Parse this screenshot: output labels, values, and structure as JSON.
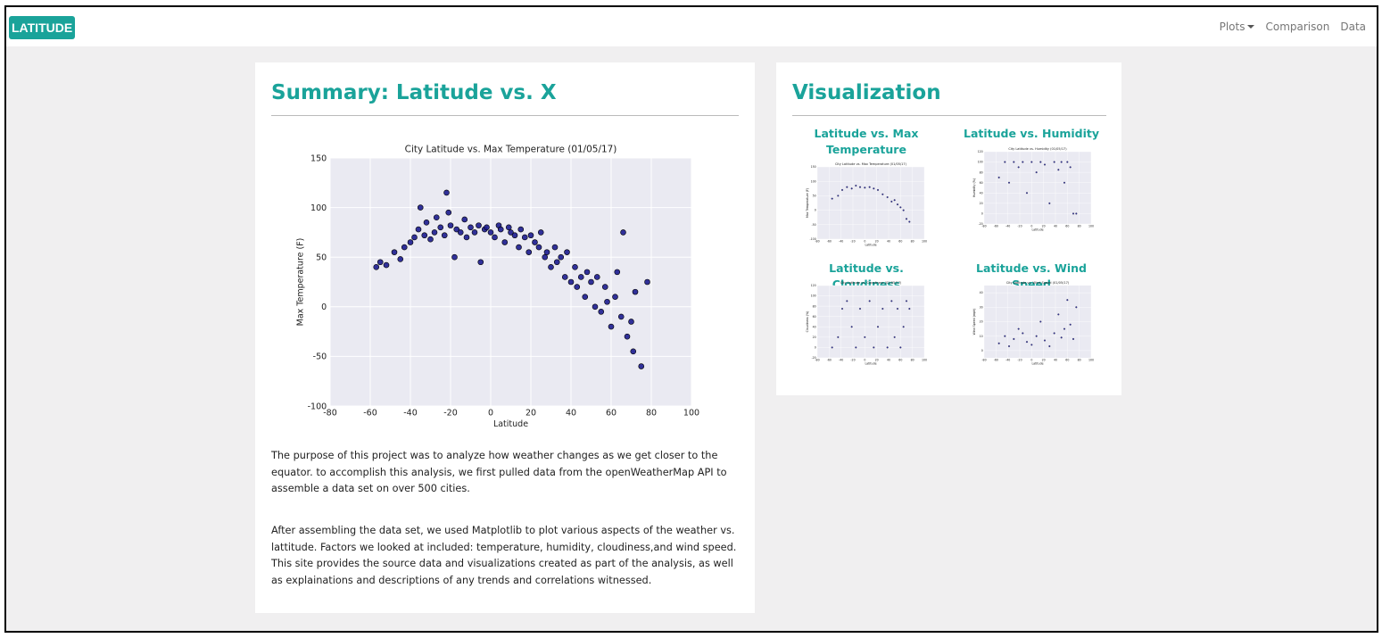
{
  "navbar": {
    "brand": "LATITUDE",
    "links": [
      "Plots",
      "Comparison",
      "Data"
    ]
  },
  "summary": {
    "title": "Summary: Latitude vs. X",
    "chart": {
      "type": "scatter",
      "title": "City Latitude vs. Max Temperature (01/05/17)",
      "xlabel": "Latitude",
      "ylabel": "Max Temperature (F)",
      "x": [
        -57,
        -55,
        -52,
        -48,
        -45,
        -43,
        -40,
        -38,
        -36,
        -35,
        -33,
        -32,
        -30,
        -28,
        -27,
        -25,
        -23,
        -22,
        -21,
        -20,
        -18,
        -17,
        -15,
        -13,
        -12,
        -10,
        -8,
        -6,
        -5,
        -3,
        -2,
        0,
        2,
        4,
        5,
        7,
        9,
        10,
        12,
        14,
        15,
        17,
        19,
        20,
        22,
        24,
        25,
        27,
        28,
        30,
        32,
        33,
        35,
        37,
        38,
        40,
        42,
        43,
        45,
        47,
        48,
        50,
        52,
        53,
        55,
        57,
        58,
        60,
        62,
        63,
        65,
        66,
        68,
        70,
        71,
        72,
        75,
        78
      ],
      "values": [
        40,
        45,
        42,
        55,
        48,
        60,
        65,
        70,
        78,
        100,
        72,
        85,
        68,
        75,
        90,
        80,
        72,
        115,
        95,
        82,
        50,
        78,
        75,
        88,
        70,
        80,
        75,
        82,
        45,
        78,
        80,
        75,
        70,
        82,
        78,
        65,
        80,
        75,
        72,
        60,
        78,
        70,
        55,
        72,
        65,
        60,
        75,
        50,
        55,
        40,
        60,
        45,
        50,
        30,
        55,
        25,
        40,
        20,
        30,
        10,
        35,
        25,
        0,
        30,
        -5,
        20,
        5,
        -20,
        10,
        35,
        -10,
        75,
        -30,
        -15,
        -45,
        15,
        -60,
        25
      ],
      "xlim": [
        -80,
        100
      ],
      "xticks": [
        -80,
        -60,
        -40,
        -20,
        0,
        20,
        40,
        60,
        80,
        100
      ],
      "ylim": [
        -100,
        150
      ],
      "yticks": [
        -100,
        -50,
        0,
        50,
        100,
        150
      ],
      "color": "#1c1c8f",
      "grid": true
    },
    "paragraphs": [
      "The purpose of this project was to analyze how weather changes as we get closer to the equator. to accomplish this analysis, we first pulled data from the openWeatherMap API to assemble a data set on over 500 cities.",
      "After assembling the data set, we used Matplotlib to plot various aspects of the weather vs. lattitude. Factors we looked at included: temperature, humidity, cloudiness,and wind speed. This site provides the source data and visualizations created as part of the analysis, as well as explainations and descriptions of any trends and correlations witnessed."
    ]
  },
  "visualization": {
    "title": "Visualization",
    "plots": [
      {
        "title": "Latitude vs. Max Temperature",
        "chart": {
          "type": "scatter",
          "title": "City Latitude vs. Max Temperature (01/05/17)",
          "xlabel": "Latitude",
          "ylabel": "Max Temperature (F)",
          "x": [
            -55,
            -45,
            -38,
            -30,
            -22,
            -15,
            -8,
            0,
            8,
            15,
            22,
            30,
            38,
            45,
            50,
            55,
            60,
            65,
            70,
            75
          ],
          "values": [
            40,
            50,
            70,
            80,
            75,
            85,
            80,
            78,
            80,
            75,
            70,
            55,
            45,
            30,
            35,
            20,
            10,
            0,
            -30,
            -40
          ],
          "xlim": [
            -80,
            100
          ],
          "xticks": [
            -80,
            -60,
            -40,
            -20,
            0,
            20,
            40,
            60,
            80,
            100
          ],
          "ylim": [
            -100,
            150
          ],
          "yticks": [
            -100,
            -50,
            0,
            50,
            100,
            150
          ],
          "color": "#1c1c8f",
          "grid": true
        }
      },
      {
        "title": "Latitude vs. Humidity",
        "chart": {
          "type": "scatter",
          "title": "City Latitude vs. Humidity (01/05/17)",
          "xlabel": "Latitude",
          "ylabel": "Humidity (%)",
          "x": [
            -55,
            -45,
            -38,
            -30,
            -22,
            -15,
            -8,
            0,
            8,
            15,
            22,
            30,
            38,
            45,
            50,
            55,
            60,
            65,
            70,
            75
          ],
          "values": [
            70,
            100,
            60,
            100,
            90,
            100,
            40,
            100,
            80,
            100,
            95,
            20,
            100,
            85,
            100,
            60,
            100,
            90,
            0,
            0
          ],
          "xlim": [
            -80,
            100
          ],
          "xticks": [
            -80,
            -60,
            -40,
            -20,
            0,
            20,
            40,
            60,
            80,
            100
          ],
          "ylim": [
            -20,
            120
          ],
          "yticks": [
            -20,
            0,
            20,
            40,
            60,
            80,
            100,
            120
          ],
          "color": "#1c1c8f",
          "grid": true
        }
      },
      {
        "title": "Latitude vs. Cloudiness",
        "chart": {
          "type": "scatter",
          "title": "City Latitude vs. Cloudiness (01/05/17)",
          "xlabel": "Latitude",
          "ylabel": "Cloudiness (%)",
          "x": [
            -55,
            -45,
            -38,
            -30,
            -22,
            -15,
            -8,
            0,
            8,
            15,
            22,
            30,
            38,
            45,
            50,
            55,
            60,
            65,
            70,
            75
          ],
          "values": [
            0,
            20,
            75,
            90,
            40,
            0,
            75,
            20,
            90,
            0,
            40,
            75,
            0,
            90,
            20,
            75,
            0,
            40,
            90,
            75
          ],
          "xlim": [
            -80,
            100
          ],
          "xticks": [
            -80,
            -60,
            -40,
            -20,
            0,
            20,
            40,
            60,
            80,
            100
          ],
          "ylim": [
            -20,
            120
          ],
          "yticks": [
            -20,
            0,
            20,
            40,
            60,
            80,
            100,
            120
          ],
          "color": "#1c1c8f",
          "grid": true
        }
      },
      {
        "title": "Latitude vs. Wind Speed",
        "chart": {
          "type": "scatter",
          "title": "City Latitude vs. Wind Speed (01/05/17)",
          "xlabel": "Latitude",
          "ylabel": "Wind Speed (mph)",
          "x": [
            -55,
            -45,
            -38,
            -30,
            -22,
            -15,
            -8,
            0,
            8,
            15,
            22,
            30,
            38,
            45,
            50,
            55,
            60,
            65,
            70,
            75
          ],
          "values": [
            5,
            10,
            3,
            8,
            15,
            12,
            6,
            4,
            10,
            20,
            7,
            3,
            12,
            25,
            9,
            15,
            35,
            18,
            8,
            30
          ],
          "xlim": [
            -80,
            100
          ],
          "xticks": [
            -80,
            -60,
            -40,
            -20,
            0,
            20,
            40,
            60,
            80,
            100
          ],
          "ylim": [
            -5,
            45
          ],
          "yticks": [
            0,
            10,
            20,
            30,
            40
          ],
          "color": "#1c1c8f",
          "grid": true
        }
      }
    ]
  }
}
